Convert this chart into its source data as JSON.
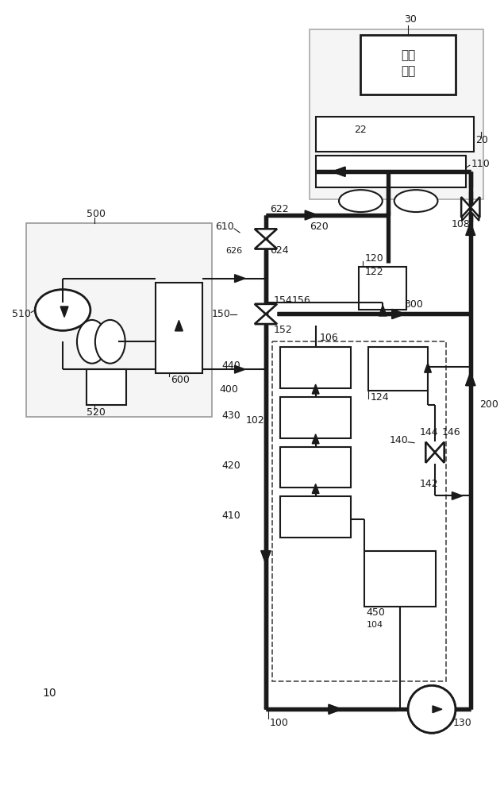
{
  "bg": "#ffffff",
  "lc": "#1a1a1a",
  "gray": "#888888",
  "tlw": 3.8,
  "nlw": 1.5,
  "dlw": 1.3,
  "fuel_text1": "燃料",
  "fuel_text2": "电池"
}
